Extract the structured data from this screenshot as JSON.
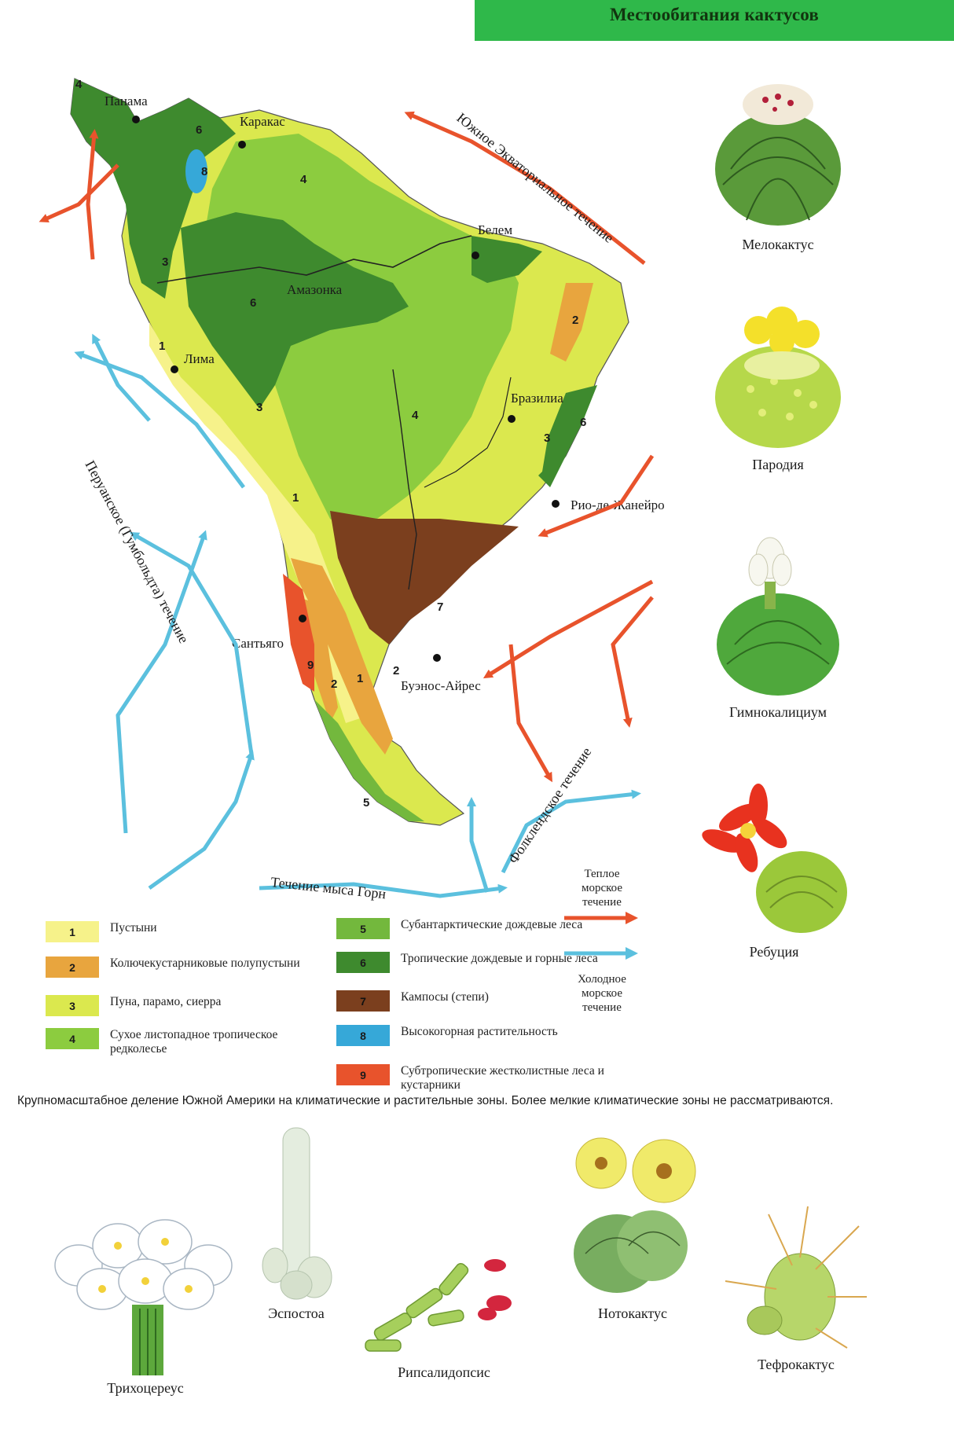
{
  "title": "Местообитания кактусов",
  "cities": {
    "panama": "Панама",
    "caracas": "Каракас",
    "belem": "Белем",
    "amazon": "Амазонка",
    "lima": "Лима",
    "brasilia": "Бразилиа",
    "rio": "Рио-де-Жанейро",
    "santiago": "Сантьяго",
    "buenos_aires": "Буэнос-Айрес"
  },
  "currents": {
    "south_equatorial": "Южное Экваториальное течение",
    "peruvian": "Перуанское (Гумбольдта) течение",
    "falkland": "Фолклендское течение",
    "cape_horn": "Течение мыса Горн"
  },
  "zone_numbers": [
    "1",
    "2",
    "3",
    "4",
    "5",
    "6",
    "7",
    "8",
    "9"
  ],
  "legend": [
    {
      "num": "1",
      "label": "Пустыни",
      "color": "#f6f28a"
    },
    {
      "num": "2",
      "label": "Колючекустарниковые полупустыни",
      "color": "#e8a53e"
    },
    {
      "num": "3",
      "label": "Пуна, парамо, сиерра",
      "color": "#dbe84e"
    },
    {
      "num": "4",
      "label": "Сухое листопадное тропическое редколесье",
      "color": "#8ccc3f"
    },
    {
      "num": "5",
      "label": "Субантарктические дождевые леса",
      "color": "#73b83d"
    },
    {
      "num": "6",
      "label": "Тропические дождевые и горные леса",
      "color": "#3e8a2e"
    },
    {
      "num": "7",
      "label": "Кампосы (степи)",
      "color": "#7b3f1e"
    },
    {
      "num": "8",
      "label": "Высокогорная растительность",
      "color": "#36a8d8"
    },
    {
      "num": "9",
      "label": "Субтропические жестколистные леса и кустарники",
      "color": "#e8532c"
    }
  ],
  "current_legend": {
    "warm": "Теплое морское течение",
    "cold": "Холодное морское течение",
    "warm_color": "#e8532c",
    "cold_color": "#5bc0de"
  },
  "caption": "Крупномасштабное деление Южной Америки на климатические и растительные зоны. Более мелкие климатические зоны не рассматриваются.",
  "cacti": {
    "melocactus": "Мелокактус",
    "parodia": "Пародия",
    "gymnocalycium": "Гимнокалициум",
    "rebutia": "Ребуция",
    "trichocereus": "Трихоцереус",
    "espostoa": "Эспостоа",
    "rhipsalidopsis": "Рипсалидопсис",
    "notocactus": "Нотокактус",
    "tephrocactus": "Тефрокактус"
  }
}
